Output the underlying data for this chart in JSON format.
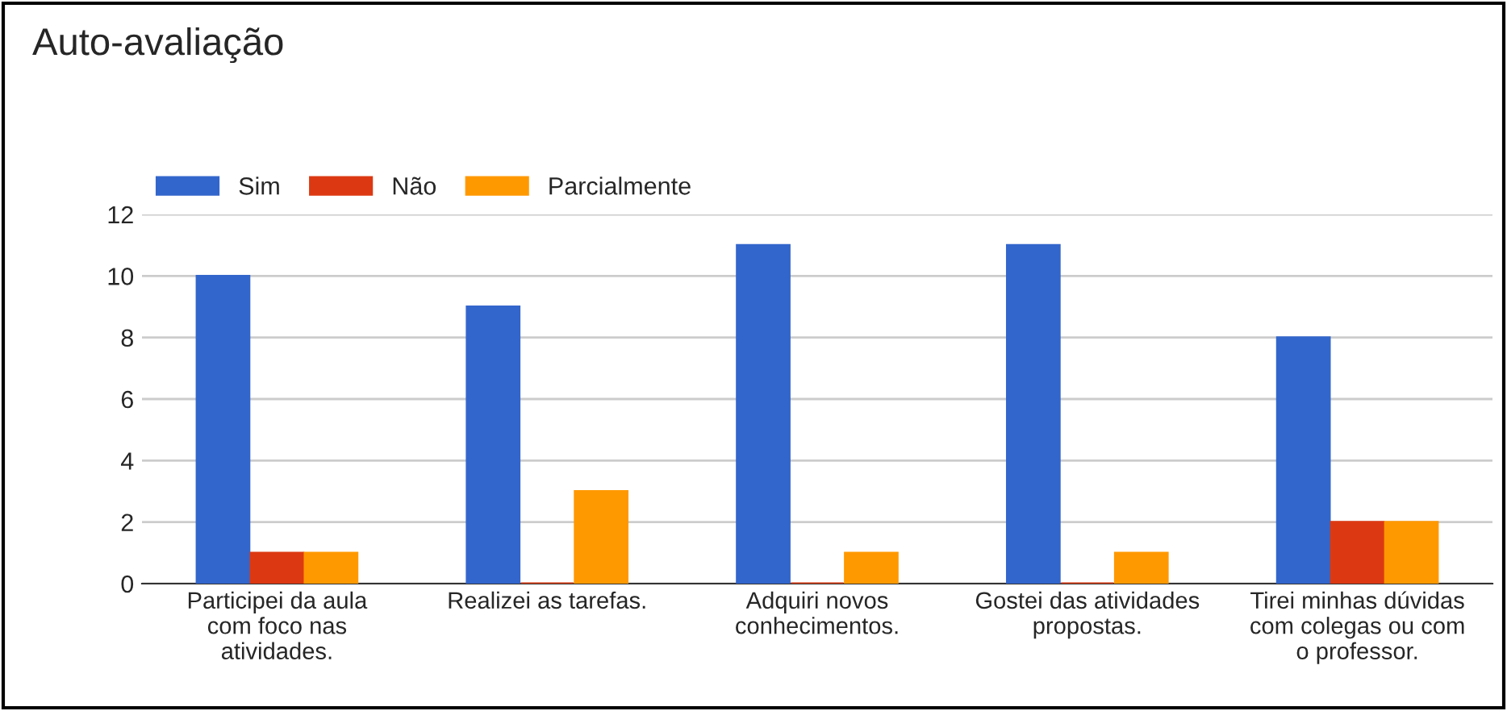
{
  "chart_data": {
    "type": "bar",
    "title": "Auto-avaliação",
    "categories": [
      "Participei da aula\ncom foco nas\natividades.",
      "Realizei as tarefas.",
      "Adquiri novos\nconhecimentos.",
      "Gostei das atividades\npropostas.",
      "Tirei minhas dúvidas\ncom colegas ou com\no professor."
    ],
    "series": [
      {
        "name": "Sim",
        "color": "#3366cc",
        "values": [
          10,
          9,
          11,
          11,
          8
        ]
      },
      {
        "name": "Não",
        "color": "#dc3912",
        "values": [
          1,
          0,
          0,
          0,
          2
        ]
      },
      {
        "name": "Parcialmente",
        "color": "#ff9900",
        "values": [
          1,
          3,
          1,
          1,
          2
        ]
      }
    ],
    "ylim": [
      0,
      12
    ],
    "yticks": [
      0,
      2,
      4,
      6,
      8,
      10,
      12
    ],
    "grid": "y",
    "legend": "top left"
  }
}
